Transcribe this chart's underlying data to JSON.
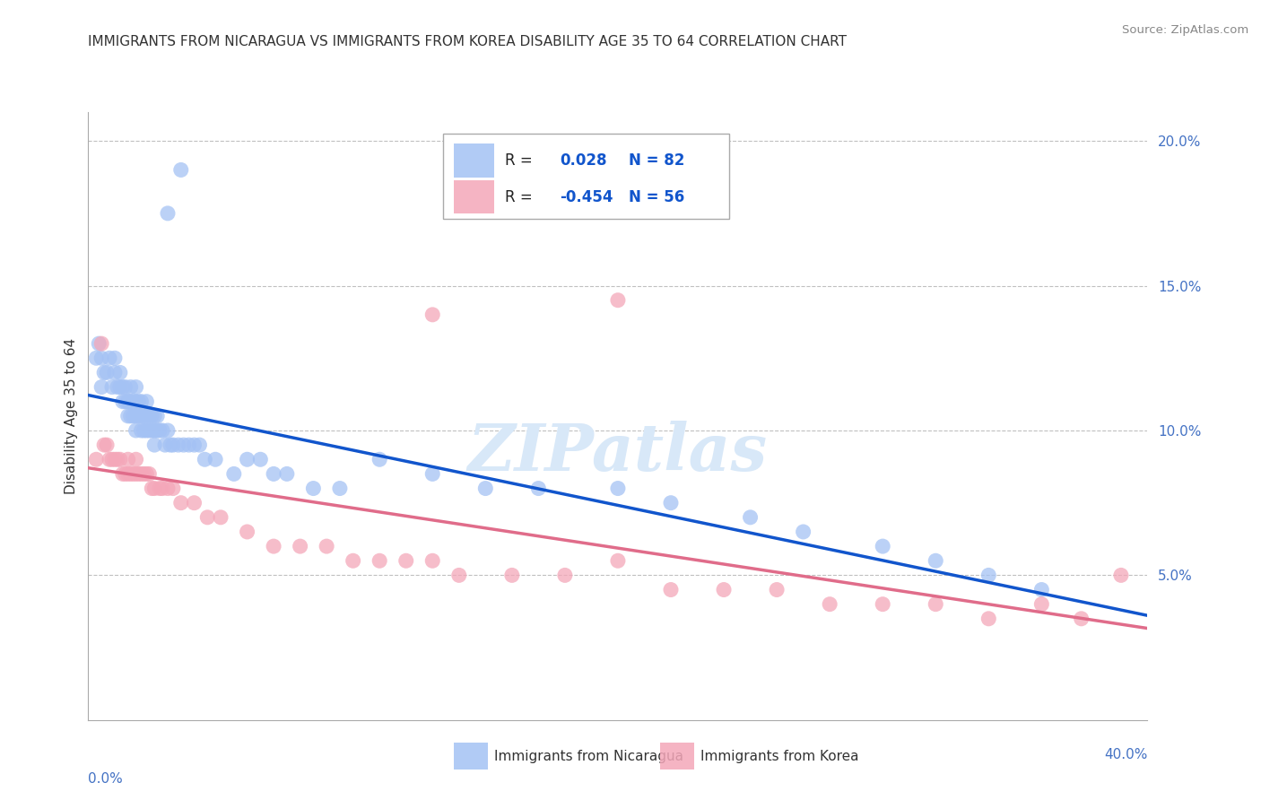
{
  "title": "IMMIGRANTS FROM NICARAGUA VS IMMIGRANTS FROM KOREA DISABILITY AGE 35 TO 64 CORRELATION CHART",
  "source": "Source: ZipAtlas.com",
  "ylabel": "Disability Age 35 to 64",
  "xmin": 0.0,
  "xmax": 0.4,
  "ymin": 0.0,
  "ymax": 0.21,
  "nicaragua_color": "#a4c2f4",
  "korea_color": "#f4a7b9",
  "nicaragua_R": 0.028,
  "nicaragua_N": 82,
  "korea_R": -0.454,
  "korea_N": 56,
  "nicaragua_line_color": "#1155cc",
  "korea_line_color": "#e06c8a",
  "watermark": "ZIPatlas",
  "gridline_color": "#c0c0c0",
  "background_color": "#ffffff",
  "nicaragua_points_x": [
    0.003,
    0.004,
    0.005,
    0.005,
    0.006,
    0.007,
    0.008,
    0.009,
    0.01,
    0.01,
    0.011,
    0.012,
    0.012,
    0.013,
    0.013,
    0.014,
    0.014,
    0.015,
    0.015,
    0.015,
    0.016,
    0.016,
    0.016,
    0.017,
    0.017,
    0.018,
    0.018,
    0.018,
    0.018,
    0.019,
    0.019,
    0.02,
    0.02,
    0.02,
    0.021,
    0.021,
    0.022,
    0.022,
    0.022,
    0.023,
    0.023,
    0.024,
    0.024,
    0.025,
    0.025,
    0.025,
    0.026,
    0.026,
    0.027,
    0.028,
    0.029,
    0.03,
    0.031,
    0.032,
    0.034,
    0.036,
    0.038,
    0.04,
    0.042,
    0.044,
    0.048,
    0.055,
    0.06,
    0.065,
    0.07,
    0.075,
    0.085,
    0.095,
    0.11,
    0.13,
    0.15,
    0.17,
    0.2,
    0.22,
    0.25,
    0.27,
    0.3,
    0.32,
    0.34,
    0.36,
    0.03,
    0.035
  ],
  "nicaragua_points_y": [
    0.125,
    0.13,
    0.125,
    0.115,
    0.12,
    0.12,
    0.125,
    0.115,
    0.12,
    0.125,
    0.115,
    0.12,
    0.115,
    0.115,
    0.11,
    0.11,
    0.115,
    0.11,
    0.11,
    0.105,
    0.105,
    0.11,
    0.115,
    0.105,
    0.11,
    0.105,
    0.1,
    0.11,
    0.115,
    0.105,
    0.11,
    0.105,
    0.1,
    0.11,
    0.1,
    0.105,
    0.1,
    0.105,
    0.11,
    0.1,
    0.105,
    0.1,
    0.105,
    0.095,
    0.1,
    0.105,
    0.1,
    0.105,
    0.1,
    0.1,
    0.095,
    0.1,
    0.095,
    0.095,
    0.095,
    0.095,
    0.095,
    0.095,
    0.095,
    0.09,
    0.09,
    0.085,
    0.09,
    0.09,
    0.085,
    0.085,
    0.08,
    0.08,
    0.09,
    0.085,
    0.08,
    0.08,
    0.08,
    0.075,
    0.07,
    0.065,
    0.06,
    0.055,
    0.05,
    0.045,
    0.175,
    0.19
  ],
  "korea_points_x": [
    0.003,
    0.005,
    0.006,
    0.007,
    0.008,
    0.009,
    0.01,
    0.011,
    0.012,
    0.013,
    0.014,
    0.015,
    0.015,
    0.016,
    0.017,
    0.018,
    0.018,
    0.019,
    0.02,
    0.021,
    0.022,
    0.023,
    0.024,
    0.025,
    0.027,
    0.028,
    0.03,
    0.032,
    0.035,
    0.04,
    0.045,
    0.05,
    0.06,
    0.07,
    0.08,
    0.09,
    0.1,
    0.11,
    0.12,
    0.13,
    0.14,
    0.16,
    0.18,
    0.2,
    0.22,
    0.24,
    0.26,
    0.28,
    0.3,
    0.32,
    0.34,
    0.36,
    0.375,
    0.39,
    0.2,
    0.13
  ],
  "korea_points_y": [
    0.09,
    0.13,
    0.095,
    0.095,
    0.09,
    0.09,
    0.09,
    0.09,
    0.09,
    0.085,
    0.085,
    0.085,
    0.09,
    0.085,
    0.085,
    0.085,
    0.09,
    0.085,
    0.085,
    0.085,
    0.085,
    0.085,
    0.08,
    0.08,
    0.08,
    0.08,
    0.08,
    0.08,
    0.075,
    0.075,
    0.07,
    0.07,
    0.065,
    0.06,
    0.06,
    0.06,
    0.055,
    0.055,
    0.055,
    0.055,
    0.05,
    0.05,
    0.05,
    0.055,
    0.045,
    0.045,
    0.045,
    0.04,
    0.04,
    0.04,
    0.035,
    0.04,
    0.035,
    0.05,
    0.145,
    0.14
  ]
}
